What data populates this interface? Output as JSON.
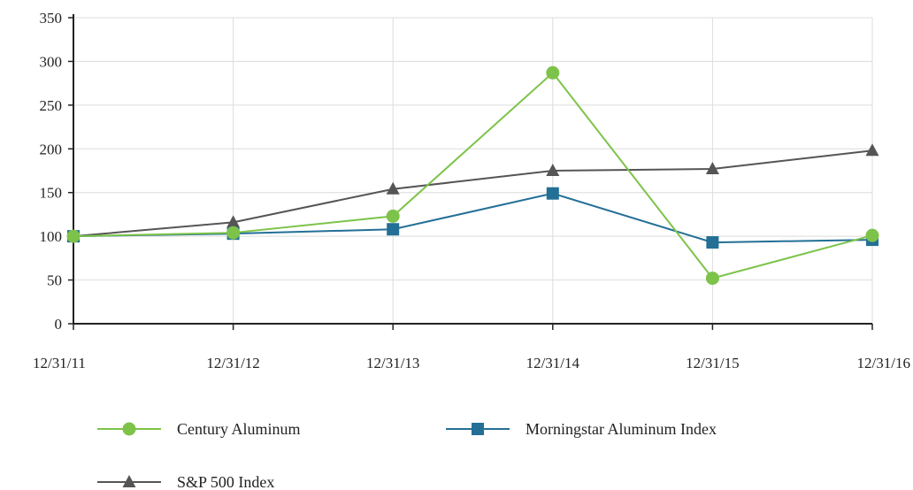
{
  "chart_data": {
    "type": "line",
    "title": "",
    "xlabel": "",
    "ylabel": "",
    "categories": [
      "12/31/11",
      "12/31/12",
      "12/31/13",
      "12/31/14",
      "12/31/15",
      "12/31/16"
    ],
    "ylim": [
      0,
      350
    ],
    "yticks": [
      "0",
      "50",
      "100",
      "150",
      "200",
      "250",
      "300",
      "350"
    ],
    "grid": true,
    "legend_position": "bottom",
    "series": [
      {
        "name": "Century Aluminum",
        "values": [
          100,
          104,
          123,
          287,
          52,
          101
        ],
        "color": "#7dc34a",
        "marker": "circle"
      },
      {
        "name": "Morningstar Aluminum Index",
        "values": [
          100,
          103,
          108,
          149,
          93,
          96
        ],
        "color": "#236f96",
        "marker": "square"
      },
      {
        "name": "S&P 500 Index",
        "values": [
          100,
          116,
          154,
          175,
          177,
          198
        ],
        "color": "#555555",
        "marker": "triangle"
      }
    ]
  }
}
